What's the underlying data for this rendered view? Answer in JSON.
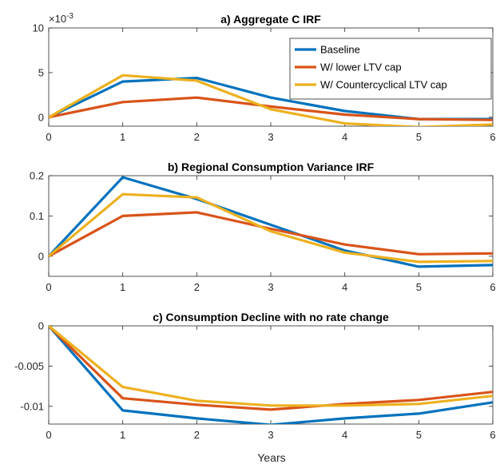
{
  "figure": {
    "xlabel": "Years"
  },
  "chart_data": [
    {
      "type": "line",
      "title": "a) Aggregate C IRF",
      "xlabel": "",
      "ylabel": "",
      "exponent_label": "×10",
      "exponent_power": "-3",
      "xlim": [
        0,
        6
      ],
      "ylim": [
        -1,
        10
      ],
      "xticks": [
        "0",
        "1",
        "2",
        "3",
        "4",
        "5",
        "6"
      ],
      "yticks": [
        {
          "v": 0,
          "label": "0"
        },
        {
          "v": 5,
          "label": "5"
        },
        {
          "v": 10,
          "label": "10"
        }
      ],
      "x": [
        0,
        1,
        2,
        3,
        4,
        5,
        6
      ],
      "legend": {
        "placement": "top-right"
      },
      "series": [
        {
          "name": "Baseline",
          "color": "#0072BD",
          "values": [
            0,
            4.0,
            4.4,
            2.2,
            0.7,
            -0.2,
            -0.2
          ]
        },
        {
          "name": "W/ lower LTV cap",
          "color": "#D95319",
          "values": [
            0,
            1.7,
            2.2,
            1.2,
            0.3,
            -0.2,
            -0.3
          ]
        },
        {
          "name": "W/ Countercyclical LTV cap",
          "color": "#EDB120",
          "values": [
            0,
            4.7,
            4.1,
            0.9,
            -0.7,
            -1.1,
            -0.8
          ]
        }
      ]
    },
    {
      "type": "line",
      "title": "b) Regional Consumption Variance IRF",
      "xlabel": "",
      "ylabel": "",
      "xlim": [
        0,
        6
      ],
      "ylim": [
        -0.05,
        0.2
      ],
      "xticks": [
        "0",
        "1",
        "2",
        "3",
        "4",
        "5",
        "6"
      ],
      "yticks": [
        {
          "v": 0,
          "label": "0"
        },
        {
          "v": 0.1,
          "label": "0.1"
        },
        {
          "v": 0.2,
          "label": "0.2"
        }
      ],
      "x": [
        0,
        1,
        2,
        3,
        4,
        5,
        6
      ],
      "series": [
        {
          "color": "#0072BD",
          "values": [
            0,
            0.196,
            0.142,
            0.078,
            0.014,
            -0.026,
            -0.022
          ]
        },
        {
          "color": "#D95319",
          "values": [
            0,
            0.1,
            0.109,
            0.068,
            0.029,
            0.005,
            0.007
          ]
        },
        {
          "color": "#EDB120",
          "values": [
            0,
            0.154,
            0.146,
            0.062,
            0.009,
            -0.014,
            -0.012
          ]
        }
      ]
    },
    {
      "type": "line",
      "title": "c) Consumption Decline with no rate change",
      "xlabel": "Years",
      "ylabel": "",
      "xlim": [
        0,
        6
      ],
      "ylim": [
        -0.0122,
        0
      ],
      "xticks": [
        "0",
        "1",
        "2",
        "3",
        "4",
        "5",
        "6"
      ],
      "yticks": [
        {
          "v": 0,
          "label": "0"
        },
        {
          "v": -0.005,
          "label": "-0.005"
        },
        {
          "v": -0.01,
          "label": "-0.01"
        }
      ],
      "x": [
        0,
        1,
        2,
        3,
        4,
        5,
        6
      ],
      "series": [
        {
          "color": "#0072BD",
          "values": [
            0,
            -0.0105,
            -0.0115,
            -0.0123,
            -0.0115,
            -0.0109,
            -0.0095
          ]
        },
        {
          "color": "#D95319",
          "values": [
            0,
            -0.009,
            -0.0098,
            -0.0104,
            -0.0097,
            -0.0092,
            -0.0082
          ]
        },
        {
          "color": "#EDB120",
          "values": [
            0,
            -0.0076,
            -0.0093,
            -0.0099,
            -0.0099,
            -0.0097,
            -0.0087
          ]
        }
      ]
    }
  ]
}
